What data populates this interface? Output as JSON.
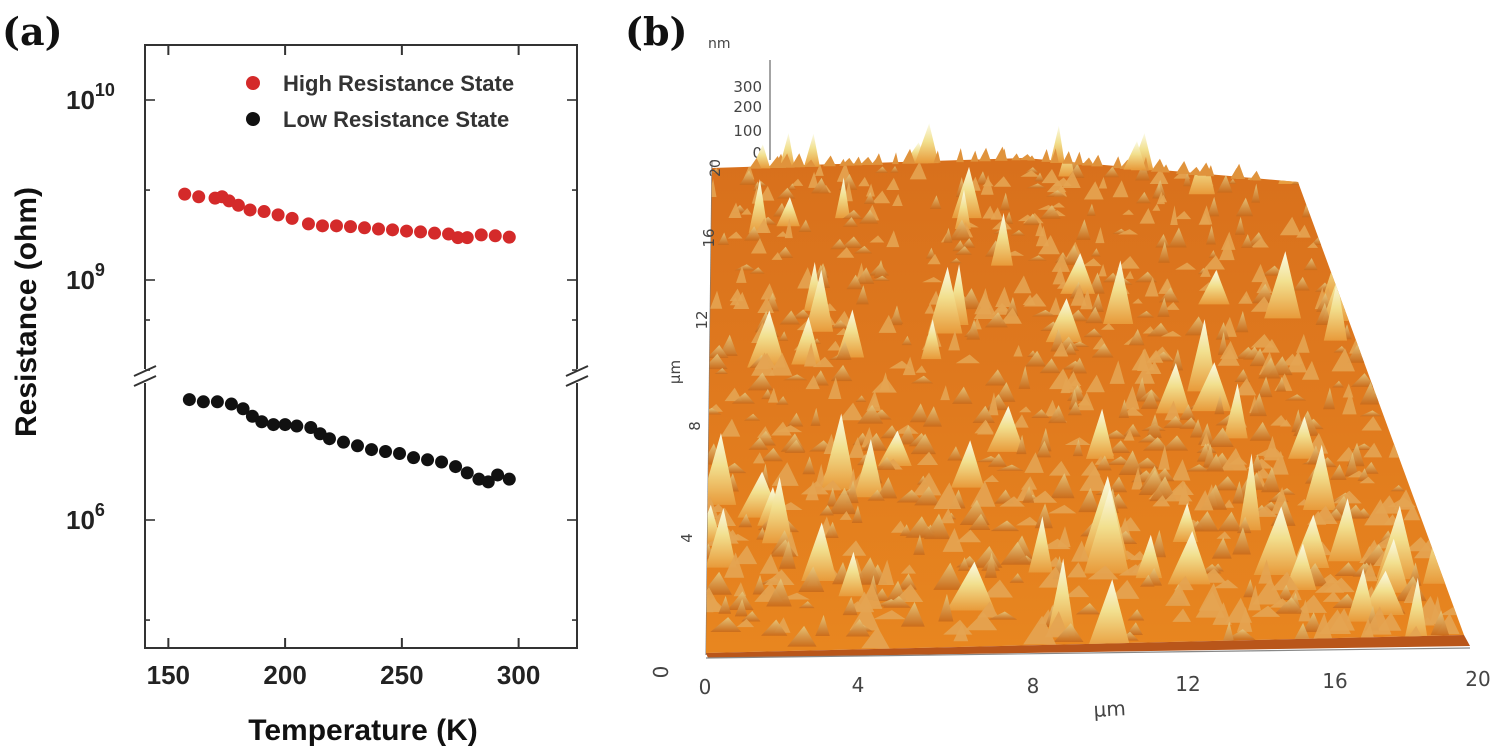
{
  "panel_a_label": "(a)",
  "panel_b_label": "(b)",
  "chart_data": [
    {
      "type": "scatter",
      "title": "",
      "xlabel": "Temperature (K)",
      "ylabel": "Resistance (ohm)",
      "xlim": [
        140,
        325
      ],
      "x_ticks": [
        150,
        200,
        250,
        300
      ],
      "y_scale": "log (broken axis)",
      "y_ticks": [
        {
          "label_base": "10",
          "label_exp": "10",
          "value": 10000000000
        },
        {
          "label_base": "10",
          "label_exp": "9",
          "value": 1000000000
        },
        {
          "label_base": "10",
          "label_exp": "6",
          "value": 1000000
        }
      ],
      "legend_position": "top-right",
      "series": [
        {
          "name": "High Resistance State",
          "color": "#d42a2a",
          "x": [
            157,
            163,
            170,
            173,
            176,
            180,
            185,
            191,
            197,
            203,
            210,
            216,
            222,
            228,
            234,
            240,
            246,
            252,
            258,
            264,
            270,
            274,
            278,
            284,
            290,
            296
          ],
          "y": [
            3000000000.0,
            2900000000.0,
            2850000000.0,
            2900000000.0,
            2750000000.0,
            2600000000.0,
            2450000000.0,
            2400000000.0,
            2300000000.0,
            2200000000.0,
            2050000000.0,
            2000000000.0,
            2000000000.0,
            1980000000.0,
            1950000000.0,
            1920000000.0,
            1900000000.0,
            1870000000.0,
            1850000000.0,
            1820000000.0,
            1800000000.0,
            1720000000.0,
            1720000000.0,
            1780000000.0,
            1760000000.0,
            1730000000.0
          ]
        },
        {
          "name": "Low Resistance State",
          "color": "#111111",
          "x": [
            159,
            165,
            171,
            177,
            182,
            186,
            190,
            195,
            200,
            205,
            211,
            215,
            219,
            225,
            231,
            237,
            243,
            249,
            255,
            261,
            267,
            273,
            278,
            283,
            287,
            291,
            296
          ],
          "y": [
            4000000.0,
            3900000.0,
            3900000.0,
            3800000.0,
            3600000.0,
            3300000.0,
            3100000.0,
            3000000.0,
            3000000.0,
            2950000.0,
            2900000.0,
            2700000.0,
            2550000.0,
            2450000.0,
            2350000.0,
            2250000.0,
            2200000.0,
            2150000.0,
            2050000.0,
            2000000.0,
            1950000.0,
            1850000.0,
            1720000.0,
            1600000.0,
            1550000.0,
            1680000.0,
            1600000.0
          ]
        }
      ]
    },
    {
      "type": "surface",
      "title": "",
      "xlabel": "µm",
      "ylabel": "µm",
      "zlabel": "nm",
      "x_ticks": [
        "0",
        "4",
        "8",
        "12",
        "16",
        "20"
      ],
      "y_ticks": [
        "0",
        "4",
        "8",
        "12",
        "16",
        "20"
      ],
      "z_ticks": [
        "300",
        "200",
        "100",
        "0"
      ]
    }
  ]
}
